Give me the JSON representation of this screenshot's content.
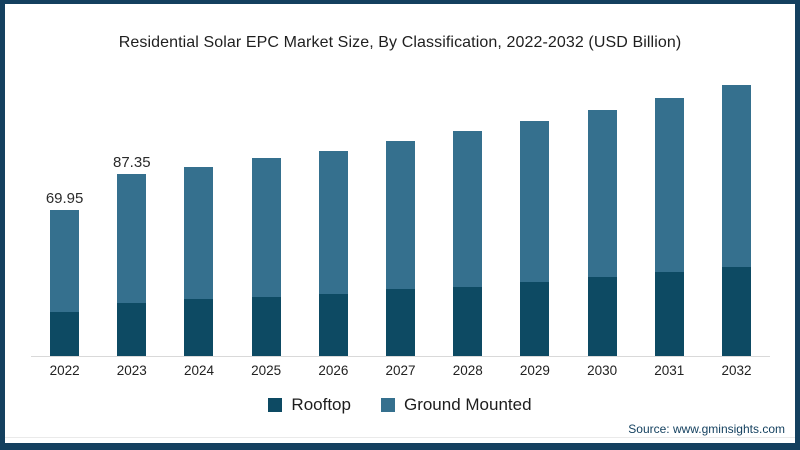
{
  "page": {
    "background": "#ffffff",
    "border_color": "#14405f"
  },
  "chart_data": {
    "type": "bar",
    "stacked": true,
    "title": "Residential Solar EPC Market Size, By Classification, 2022-2032 (USD Billion)",
    "unit": "USD Billion",
    "categories": [
      "2022",
      "2023",
      "2024",
      "2025",
      "2026",
      "2027",
      "2028",
      "2029",
      "2030",
      "2031",
      "2032"
    ],
    "series": [
      {
        "name": "Rooftop",
        "color": "#0d4a63",
        "values": [
          21,
          25.5,
          27.5,
          28.5,
          30,
          32,
          33,
          35.5,
          38,
          40.5,
          42.5
        ]
      },
      {
        "name": "Ground Mounted",
        "color": "#35708e",
        "values": [
          48.95,
          61.85,
          63.5,
          66.5,
          68.5,
          71,
          75,
          77.5,
          80,
          83.5,
          87.5
        ]
      }
    ],
    "totals": [
      69.95,
      87.35,
      91,
      95,
      98.5,
      103,
      108,
      113,
      118,
      124,
      130
    ],
    "data_labels": [
      "69.95",
      "87.35",
      "",
      "",
      "",
      "",
      "",
      "",
      "",
      "",
      ""
    ],
    "ylim": [
      0,
      135
    ],
    "grid": false,
    "legend_position": "bottom",
    "axis_line_color": "#d9d9d9"
  },
  "source": {
    "text": "Source: www.gminsights.com"
  }
}
